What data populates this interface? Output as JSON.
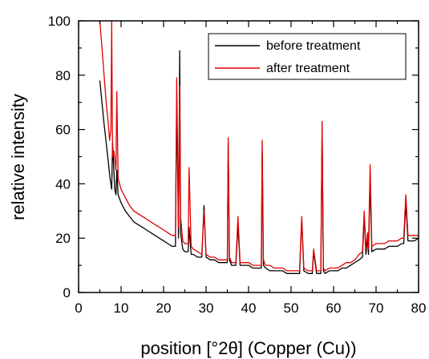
{
  "chart_data": {
    "type": "line",
    "xlabel": "position [°2θ] (Copper (Cu))",
    "ylabel": "relative intensity",
    "xlim": [
      0,
      80
    ],
    "ylim": [
      0,
      100
    ],
    "x_ticks": [
      0,
      10,
      20,
      30,
      40,
      50,
      60,
      70,
      80
    ],
    "y_ticks": [
      0,
      20,
      40,
      60,
      80,
      100
    ],
    "grid": false,
    "legend_position": "top-right",
    "series": [
      {
        "name": "before treatment",
        "color": "#000000",
        "x": [
          5,
          6,
          7,
          7.4,
          7.6,
          7.8,
          8,
          8.5,
          8.8,
          9,
          9.3,
          10,
          11,
          12,
          13,
          14,
          15,
          16,
          17,
          18,
          19,
          20,
          21,
          22,
          22.8,
          23.1,
          23.5,
          23.8,
          24,
          24.5,
          25,
          25.8,
          26,
          26.5,
          27,
          28,
          29,
          29.5,
          30,
          31,
          32,
          33,
          34,
          35,
          35.2,
          35.5,
          36,
          37,
          37.5,
          38,
          39,
          40,
          41,
          42,
          43,
          43.2,
          43.5,
          44,
          45,
          46,
          47,
          48,
          49,
          50,
          51,
          52,
          52.5,
          53,
          54,
          55,
          55.3,
          56,
          57,
          57.3,
          57.6,
          58,
          59,
          60,
          61,
          62,
          63,
          64,
          65,
          66,
          66.8,
          67.2,
          67.6,
          68,
          68.2,
          68.6,
          69,
          70,
          71,
          72,
          73,
          74,
          75,
          76,
          76.5,
          77,
          77.5,
          78,
          79,
          80
        ],
        "y": [
          78,
          62,
          48,
          42,
          40,
          38,
          55,
          38,
          36,
          45,
          36,
          33,
          30,
          28,
          26,
          25,
          24,
          23,
          22,
          21,
          20,
          19,
          18,
          17,
          17,
          72,
          20,
          89,
          22,
          16,
          15,
          15,
          24,
          14,
          14,
          13,
          13,
          32,
          13,
          12,
          12,
          11,
          11,
          11,
          55,
          12,
          10,
          10,
          25,
          10,
          10,
          10,
          9,
          9,
          9,
          52,
          10,
          9,
          8,
          8,
          8,
          8,
          7,
          7,
          7,
          7,
          27,
          8,
          7,
          7,
          15,
          7,
          7,
          60,
          8,
          7,
          8,
          8,
          8,
          9,
          9,
          10,
          11,
          12,
          13,
          28,
          14,
          20,
          14,
          41,
          15,
          16,
          16,
          16,
          17,
          17,
          17,
          18,
          18,
          33,
          19,
          19,
          19,
          20
        ]
      },
      {
        "name": "after treatment",
        "color": "#e00000",
        "x": [
          5,
          5.5,
          6,
          6.5,
          7,
          7.3,
          7.6,
          7.8,
          8,
          8.3,
          8.8,
          9,
          9.3,
          10,
          11,
          12,
          13,
          14,
          15,
          16,
          17,
          18,
          19,
          20,
          21,
          22,
          22.8,
          23.1,
          23.5,
          23.8,
          24,
          24.5,
          25,
          25.8,
          26,
          26.5,
          27,
          28,
          29,
          29.5,
          30,
          31,
          32,
          33,
          34,
          35,
          35.2,
          35.5,
          36,
          37,
          37.5,
          38,
          39,
          40,
          41,
          42,
          43,
          43.2,
          43.5,
          44,
          45,
          46,
          47,
          48,
          49,
          50,
          51,
          52,
          52.5,
          53,
          54,
          55,
          55.3,
          56,
          57,
          57.3,
          57.6,
          58,
          59,
          60,
          61,
          62,
          63,
          64,
          65,
          66,
          66.8,
          67.2,
          67.6,
          68,
          68.2,
          68.6,
          69,
          70,
          71,
          72,
          73,
          74,
          75,
          76,
          76.5,
          77,
          77.5,
          78,
          79,
          80
        ],
        "y": [
          100,
          90,
          80,
          70,
          62,
          56,
          60,
          100,
          50,
          52,
          45,
          74,
          42,
          38,
          35,
          32,
          30,
          29,
          28,
          27,
          26,
          25,
          24,
          23,
          22,
          21,
          21,
          79,
          24,
          76,
          28,
          19,
          18,
          18,
          46,
          17,
          16,
          15,
          14,
          30,
          14,
          13,
          13,
          12,
          12,
          12,
          57,
          13,
          11,
          11,
          28,
          11,
          11,
          11,
          10,
          10,
          10,
          56,
          12,
          10,
          10,
          9,
          9,
          9,
          8,
          8,
          8,
          8,
          28,
          9,
          8,
          8,
          16,
          8,
          8,
          63,
          9,
          8,
          9,
          9,
          9,
          10,
          11,
          11,
          12,
          14,
          15,
          30,
          16,
          22,
          16,
          47,
          17,
          18,
          18,
          18,
          19,
          19,
          19,
          20,
          20,
          36,
          21,
          21,
          21,
          21
        ]
      }
    ]
  }
}
